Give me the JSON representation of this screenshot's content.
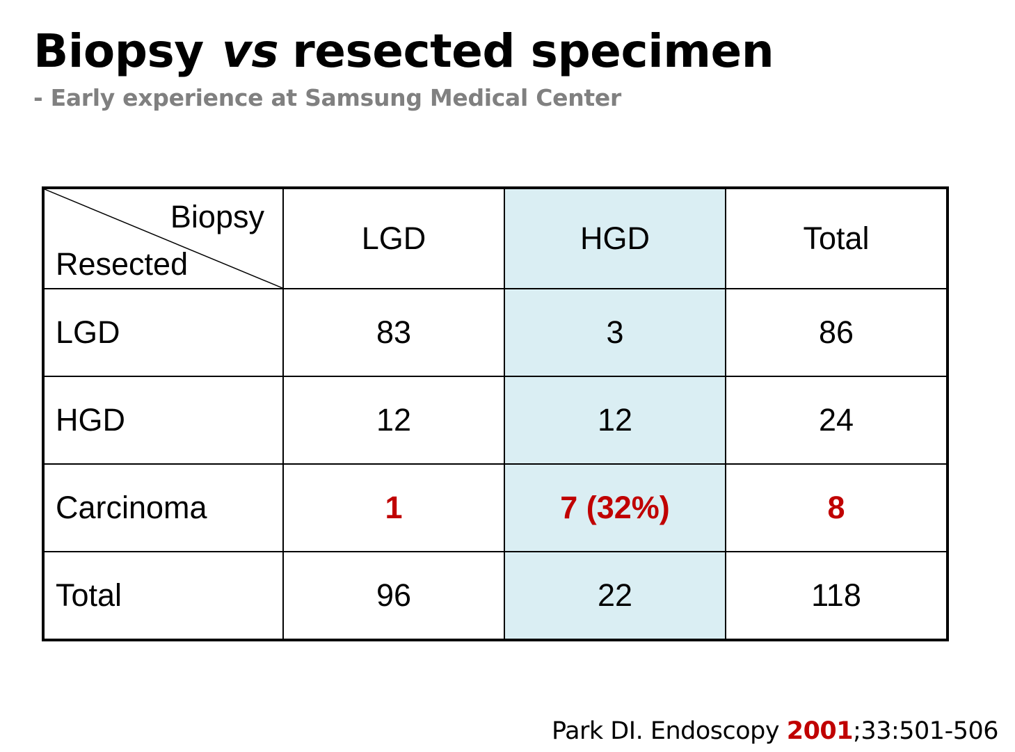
{
  "title": {
    "part1": "Biopsy",
    "italic": "vs",
    "part2": "resected specimen"
  },
  "subtitle": "- Early experience at Samsung Medical Center",
  "table": {
    "corner_top": "Biopsy",
    "corner_bottom": "Resected",
    "columns": [
      "LGD",
      "HGD",
      "Total"
    ],
    "rows": [
      {
        "label": "LGD",
        "values": [
          "83",
          "3",
          "86"
        ]
      },
      {
        "label": "HGD",
        "values": [
          "12",
          "12",
          "24"
        ]
      },
      {
        "label": "Carcinoma",
        "values": [
          "1",
          "7 (32%)",
          "8"
        ]
      },
      {
        "label": "Total",
        "values": [
          "96",
          "22",
          "118"
        ]
      }
    ],
    "highlight_column": "HGD",
    "highlight_color": "#daeef3",
    "emphasis_color": "#c00000"
  },
  "citation": {
    "prefix": "Park DI. Endoscopy ",
    "year": "2001",
    "suffix": ";33:501-506"
  }
}
